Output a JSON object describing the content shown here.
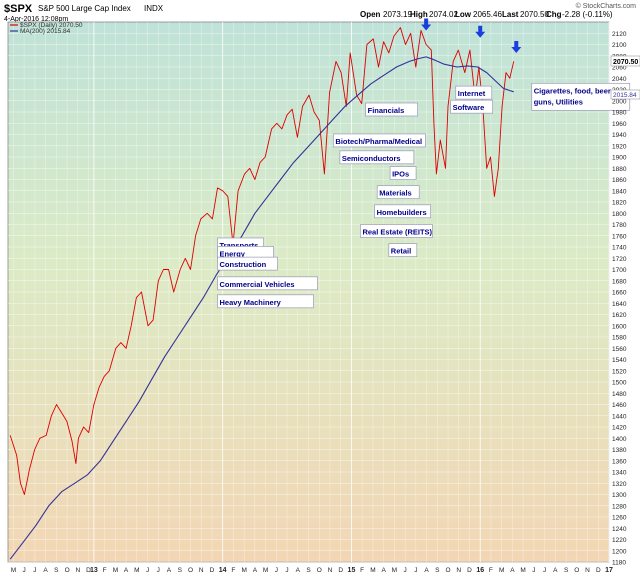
{
  "header": {
    "symbol": "$SPX",
    "name": "S&P 500 Large Cap Index",
    "exchange": "INDX",
    "date": "4-Apr-2016 12:08pm",
    "open_label": "Open",
    "open": "2073.19",
    "high_label": "High",
    "high": "2074.02",
    "low_label": "Low",
    "low": "2065.46",
    "last_label": "Last",
    "last": "2070.50",
    "chg_label": "Chg",
    "chg": "-2.28 (-0.11%)",
    "brand": "© StockCharts.com"
  },
  "legend": [
    {
      "label": "$SPX (Daily) 2070.50",
      "color": "#dd0000"
    },
    {
      "label": "MA(200) 2015.84",
      "color": "#333399"
    }
  ],
  "price_tags": {
    "last": "2070.50",
    "ma": "2015.84"
  },
  "colors": {
    "price": "#dd0000",
    "ma": "#333399",
    "arrow": "#1a3fe0",
    "label_text": "#00008b"
  },
  "chart_data": {
    "type": "line",
    "y_range": [
      1180,
      2140
    ],
    "y_ticks": [
      1180,
      1200,
      1220,
      1240,
      1260,
      1280,
      1300,
      1320,
      1340,
      1360,
      1380,
      1400,
      1420,
      1440,
      1460,
      1480,
      1500,
      1520,
      1540,
      1560,
      1580,
      1600,
      1620,
      1640,
      1660,
      1680,
      1700,
      1720,
      1740,
      1760,
      1780,
      1800,
      1820,
      1840,
      1860,
      1880,
      1900,
      1920,
      1940,
      1960,
      1980,
      2000,
      2020,
      2040,
      2060,
      2080,
      2100,
      2120
    ],
    "x_range": [
      2012.333,
      2017.0
    ],
    "x_ticks": [
      {
        "label": "M",
        "t": 2012.375
      },
      {
        "label": "J",
        "t": 2012.458
      },
      {
        "label": "J",
        "t": 2012.542
      },
      {
        "label": "A",
        "t": 2012.625
      },
      {
        "label": "S",
        "t": 2012.708
      },
      {
        "label": "O",
        "t": 2012.792
      },
      {
        "label": "N",
        "t": 2012.875
      },
      {
        "label": "D",
        "t": 2012.958
      },
      {
        "label": "13",
        "t": 2013.0,
        "major": true
      },
      {
        "label": "F",
        "t": 2013.083
      },
      {
        "label": "M",
        "t": 2013.167
      },
      {
        "label": "A",
        "t": 2013.25
      },
      {
        "label": "M",
        "t": 2013.333
      },
      {
        "label": "J",
        "t": 2013.417
      },
      {
        "label": "J",
        "t": 2013.5
      },
      {
        "label": "A",
        "t": 2013.583
      },
      {
        "label": "S",
        "t": 2013.667
      },
      {
        "label": "O",
        "t": 2013.75
      },
      {
        "label": "N",
        "t": 2013.833
      },
      {
        "label": "D",
        "t": 2013.917
      },
      {
        "label": "14",
        "t": 2014.0,
        "major": true
      },
      {
        "label": "F",
        "t": 2014.083
      },
      {
        "label": "M",
        "t": 2014.167
      },
      {
        "label": "A",
        "t": 2014.25
      },
      {
        "label": "M",
        "t": 2014.333
      },
      {
        "label": "J",
        "t": 2014.417
      },
      {
        "label": "J",
        "t": 2014.5
      },
      {
        "label": "A",
        "t": 2014.583
      },
      {
        "label": "S",
        "t": 2014.667
      },
      {
        "label": "O",
        "t": 2014.75
      },
      {
        "label": "N",
        "t": 2014.833
      },
      {
        "label": "D",
        "t": 2014.917
      },
      {
        "label": "15",
        "t": 2015.0,
        "major": true
      },
      {
        "label": "F",
        "t": 2015.083
      },
      {
        "label": "M",
        "t": 2015.167
      },
      {
        "label": "A",
        "t": 2015.25
      },
      {
        "label": "M",
        "t": 2015.333
      },
      {
        "label": "J",
        "t": 2015.417
      },
      {
        "label": "J",
        "t": 2015.5
      },
      {
        "label": "A",
        "t": 2015.583
      },
      {
        "label": "S",
        "t": 2015.667
      },
      {
        "label": "O",
        "t": 2015.75
      },
      {
        "label": "N",
        "t": 2015.833
      },
      {
        "label": "D",
        "t": 2015.917
      },
      {
        "label": "16",
        "t": 2016.0,
        "major": true
      },
      {
        "label": "F",
        "t": 2016.083
      },
      {
        "label": "M",
        "t": 2016.167
      },
      {
        "label": "A",
        "t": 2016.25
      },
      {
        "label": "M",
        "t": 2016.333
      },
      {
        "label": "J",
        "t": 2016.417
      },
      {
        "label": "J",
        "t": 2016.5
      },
      {
        "label": "A",
        "t": 2016.583
      },
      {
        "label": "S",
        "t": 2016.667
      },
      {
        "label": "O",
        "t": 2016.75
      },
      {
        "label": "N",
        "t": 2016.833
      },
      {
        "label": "D",
        "t": 2016.917
      },
      {
        "label": "17",
        "t": 2017.0,
        "major": true
      }
    ],
    "series": [
      {
        "name": "$SPX (Daily)",
        "points": [
          [
            2012.35,
            1405
          ],
          [
            2012.4,
            1370
          ],
          [
            2012.43,
            1320
          ],
          [
            2012.46,
            1300
          ],
          [
            2012.5,
            1345
          ],
          [
            2012.54,
            1380
          ],
          [
            2012.58,
            1400
          ],
          [
            2012.63,
            1405
          ],
          [
            2012.67,
            1440
          ],
          [
            2012.71,
            1460
          ],
          [
            2012.75,
            1445
          ],
          [
            2012.79,
            1430
          ],
          [
            2012.83,
            1395
          ],
          [
            2012.86,
            1355
          ],
          [
            2012.88,
            1400
          ],
          [
            2012.92,
            1420
          ],
          [
            2012.96,
            1410
          ],
          [
            2013.0,
            1460
          ],
          [
            2013.04,
            1490
          ],
          [
            2013.08,
            1510
          ],
          [
            2013.12,
            1520
          ],
          [
            2013.17,
            1560
          ],
          [
            2013.21,
            1570
          ],
          [
            2013.25,
            1560
          ],
          [
            2013.29,
            1600
          ],
          [
            2013.33,
            1650
          ],
          [
            2013.37,
            1660
          ],
          [
            2013.42,
            1600
          ],
          [
            2013.46,
            1610
          ],
          [
            2013.5,
            1680
          ],
          [
            2013.54,
            1700
          ],
          [
            2013.58,
            1700
          ],
          [
            2013.62,
            1660
          ],
          [
            2013.67,
            1700
          ],
          [
            2013.71,
            1720
          ],
          [
            2013.75,
            1700
          ],
          [
            2013.79,
            1760
          ],
          [
            2013.83,
            1790
          ],
          [
            2013.88,
            1800
          ],
          [
            2013.92,
            1790
          ],
          [
            2013.96,
            1845
          ],
          [
            2014.0,
            1840
          ],
          [
            2014.04,
            1830
          ],
          [
            2014.08,
            1745
          ],
          [
            2014.12,
            1840
          ],
          [
            2014.17,
            1870
          ],
          [
            2014.21,
            1880
          ],
          [
            2014.25,
            1860
          ],
          [
            2014.29,
            1890
          ],
          [
            2014.33,
            1900
          ],
          [
            2014.38,
            1950
          ],
          [
            2014.42,
            1960
          ],
          [
            2014.46,
            1950
          ],
          [
            2014.5,
            1975
          ],
          [
            2014.54,
            1985
          ],
          [
            2014.58,
            1935
          ],
          [
            2014.62,
            1990
          ],
          [
            2014.67,
            2010
          ],
          [
            2014.71,
            1980
          ],
          [
            2014.75,
            1965
          ],
          [
            2014.79,
            1870
          ],
          [
            2014.83,
            2015
          ],
          [
            2014.88,
            2070
          ],
          [
            2014.92,
            2050
          ],
          [
            2014.96,
            1990
          ],
          [
            2014.99,
            2085
          ],
          [
            2015.04,
            2010
          ],
          [
            2015.08,
            1995
          ],
          [
            2015.12,
            2100
          ],
          [
            2015.17,
            2110
          ],
          [
            2015.21,
            2060
          ],
          [
            2015.25,
            2105
          ],
          [
            2015.29,
            2085
          ],
          [
            2015.33,
            2115
          ],
          [
            2015.38,
            2130
          ],
          [
            2015.42,
            2100
          ],
          [
            2015.46,
            2120
          ],
          [
            2015.5,
            2060
          ],
          [
            2015.54,
            2125
          ],
          [
            2015.58,
            2100
          ],
          [
            2015.62,
            2090
          ],
          [
            2015.64,
            1960
          ],
          [
            2015.66,
            1870
          ],
          [
            2015.69,
            1930
          ],
          [
            2015.73,
            1880
          ],
          [
            2015.75,
            1990
          ],
          [
            2015.79,
            2070
          ],
          [
            2015.83,
            2090
          ],
          [
            2015.88,
            2050
          ],
          [
            2015.92,
            2090
          ],
          [
            2015.96,
            2005
          ],
          [
            2015.99,
            2060
          ],
          [
            2016.02,
            1990
          ],
          [
            2016.05,
            1880
          ],
          [
            2016.08,
            1900
          ],
          [
            2016.11,
            1830
          ],
          [
            2016.14,
            1880
          ],
          [
            2016.17,
            1990
          ],
          [
            2016.2,
            2050
          ],
          [
            2016.23,
            2040
          ],
          [
            2016.26,
            2070
          ]
        ]
      },
      {
        "name": "MA(200)",
        "points": [
          [
            2012.35,
            1185
          ],
          [
            2012.45,
            1215
          ],
          [
            2012.55,
            1245
          ],
          [
            2012.65,
            1280
          ],
          [
            2012.75,
            1305
          ],
          [
            2012.85,
            1320
          ],
          [
            2012.95,
            1335
          ],
          [
            2013.05,
            1360
          ],
          [
            2013.15,
            1395
          ],
          [
            2013.25,
            1430
          ],
          [
            2013.35,
            1465
          ],
          [
            2013.45,
            1505
          ],
          [
            2013.55,
            1545
          ],
          [
            2013.65,
            1580
          ],
          [
            2013.75,
            1615
          ],
          [
            2013.85,
            1650
          ],
          [
            2013.95,
            1690
          ],
          [
            2014.05,
            1725
          ],
          [
            2014.15,
            1760
          ],
          [
            2014.25,
            1800
          ],
          [
            2014.35,
            1830
          ],
          [
            2014.45,
            1860
          ],
          [
            2014.55,
            1890
          ],
          [
            2014.65,
            1915
          ],
          [
            2014.75,
            1940
          ],
          [
            2014.85,
            1965
          ],
          [
            2014.95,
            1990
          ],
          [
            2015.05,
            2010
          ],
          [
            2015.15,
            2030
          ],
          [
            2015.25,
            2045
          ],
          [
            2015.35,
            2060
          ],
          [
            2015.45,
            2070
          ],
          [
            2015.52,
            2075
          ],
          [
            2015.58,
            2078
          ],
          [
            2015.64,
            2073
          ],
          [
            2015.72,
            2065
          ],
          [
            2015.82,
            2060
          ],
          [
            2015.9,
            2062
          ],
          [
            2015.98,
            2060
          ],
          [
            2016.05,
            2050
          ],
          [
            2016.12,
            2035
          ],
          [
            2016.18,
            2022
          ],
          [
            2016.26,
            2016
          ]
        ]
      }
    ],
    "annotations": [
      {
        "label": "Transports",
        "t": 2013.96,
        "y": 1740,
        "w": 46
      },
      {
        "label": "Energy",
        "t": 2013.96,
        "y": 1725,
        "w": 56
      },
      {
        "label": "Construction",
        "t": 2013.96,
        "y": 1706,
        "w": 60
      },
      {
        "label": "Commercial Vehicles",
        "t": 2013.96,
        "y": 1671,
        "w": 100
      },
      {
        "label": "Heavy Machinery",
        "t": 2013.96,
        "y": 1639,
        "w": 96
      },
      {
        "label": "Biotech/Pharma/Medical",
        "t": 2014.86,
        "y": 1925,
        "w": 92
      },
      {
        "label": "Semiconductors",
        "t": 2014.91,
        "y": 1895,
        "w": 74
      },
      {
        "label": "Financials",
        "t": 2015.11,
        "y": 1980,
        "w": 52
      },
      {
        "label": "IPOs",
        "t": 2015.3,
        "y": 1867,
        "w": 26
      },
      {
        "label": "Materials",
        "t": 2015.2,
        "y": 1833,
        "w": 42
      },
      {
        "label": "Homebuilders",
        "t": 2015.18,
        "y": 1799,
        "w": 56
      },
      {
        "label": "Real Estate (REITS)",
        "t": 2015.07,
        "y": 1764,
        "w": 72
      },
      {
        "label": "Retail",
        "t": 2015.29,
        "y": 1730,
        "w": 28
      },
      {
        "label": "Internet",
        "t": 2015.81,
        "y": 2010,
        "w": 36
      },
      {
        "label": "Software",
        "t": 2015.77,
        "y": 1985,
        "w": 42
      },
      {
        "label": "Cigarettes, food, beer, guns, Utilities",
        "t": 2016.4,
        "y": 2015,
        "w": 98,
        "lines": [
          "Cigarettes, food, beer,",
          "guns, Utilities"
        ]
      }
    ],
    "arrows": [
      {
        "t": 2015.58,
        "y": 2125
      },
      {
        "t": 2016.0,
        "y": 2112
      },
      {
        "t": 2016.28,
        "y": 2085
      }
    ]
  }
}
